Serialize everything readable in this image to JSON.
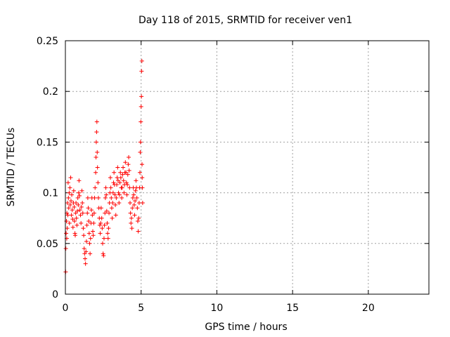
{
  "chart_data": {
    "type": "scatter",
    "title": "Day 118 of 2015, SRMTID for receiver ven1",
    "xlabel": "GPS time / hours",
    "ylabel": "SRMTID / TECUs",
    "xlim": [
      0,
      24
    ],
    "ylim": [
      0,
      0.25
    ],
    "xticks": [
      0,
      5,
      10,
      15,
      20
    ],
    "xtick_labels": [
      "0",
      "5",
      "10",
      "15",
      "20"
    ],
    "yticks": [
      0,
      0.05,
      0.1,
      0.15,
      0.2,
      0.25
    ],
    "ytick_labels": [
      "0",
      "0.05",
      "0.1",
      "0.15",
      "0.2",
      "0.25"
    ],
    "grid": true,
    "marker": "+",
    "color": "#ff0000",
    "series": [
      {
        "name": "ven1",
        "points": [
          [
            0.02,
            0.022
          ],
          [
            0.03,
            0.045
          ],
          [
            0.05,
            0.06
          ],
          [
            0.07,
            0.072
          ],
          [
            0.09,
            0.055
          ],
          [
            0.1,
            0.08
          ],
          [
            0.12,
            0.065
          ],
          [
            0.14,
            0.09
          ],
          [
            0.16,
            0.078
          ],
          [
            0.18,
            0.11
          ],
          [
            0.2,
            0.095
          ],
          [
            0.22,
            0.085
          ],
          [
            0.25,
            0.1
          ],
          [
            0.27,
            0.07
          ],
          [
            0.3,
            0.105
          ],
          [
            0.32,
            0.088
          ],
          [
            0.35,
            0.115
          ],
          [
            0.37,
            0.092
          ],
          [
            0.4,
            0.078
          ],
          [
            0.42,
            0.098
          ],
          [
            0.45,
            0.083
          ],
          [
            0.48,
            0.074
          ],
          [
            0.5,
            0.066
          ],
          [
            0.53,
            0.09
          ],
          [
            0.55,
            0.102
          ],
          [
            0.58,
            0.086
          ],
          [
            0.6,
            0.072
          ],
          [
            0.63,
            0.06
          ],
          [
            0.65,
            0.058
          ],
          [
            0.68,
            0.08
          ],
          [
            0.7,
            0.09
          ],
          [
            0.73,
            0.075
          ],
          [
            0.76,
            0.068
          ],
          [
            0.79,
            0.082
          ],
          [
            0.82,
            0.095
          ],
          [
            0.85,
            0.088
          ],
          [
            0.88,
            0.1
          ],
          [
            0.9,
            0.112
          ],
          [
            0.93,
            0.097
          ],
          [
            0.96,
            0.083
          ],
          [
            1.0,
            0.078
          ],
          [
            1.03,
            0.07
          ],
          [
            1.06,
            0.086
          ],
          [
            1.09,
            0.102
          ],
          [
            1.12,
            0.09
          ],
          [
            1.15,
            0.08
          ],
          [
            1.18,
            0.065
          ],
          [
            1.21,
            0.058
          ],
          [
            1.24,
            0.045
          ],
          [
            1.27,
            0.04
          ],
          [
            1.3,
            0.035
          ],
          [
            1.33,
            0.03
          ],
          [
            1.36,
            0.042
          ],
          [
            1.39,
            0.052
          ],
          [
            1.42,
            0.068
          ],
          [
            1.45,
            0.08
          ],
          [
            1.48,
            0.095
          ],
          [
            1.51,
            0.085
          ],
          [
            1.54,
            0.072
          ],
          [
            1.57,
            0.06
          ],
          [
            1.6,
            0.05
          ],
          [
            1.63,
            0.04
          ],
          [
            1.66,
            0.055
          ],
          [
            1.69,
            0.07
          ],
          [
            1.72,
            0.083
          ],
          [
            1.75,
            0.095
          ],
          [
            1.78,
            0.078
          ],
          [
            1.81,
            0.062
          ],
          [
            1.84,
            0.058
          ],
          [
            1.87,
            0.07
          ],
          [
            1.9,
            0.08
          ],
          [
            1.93,
            0.095
          ],
          [
            1.96,
            0.105
          ],
          [
            2.0,
            0.12
          ],
          [
            2.02,
            0.135
          ],
          [
            2.04,
            0.15
          ],
          [
            2.06,
            0.16
          ],
          [
            2.08,
            0.17
          ],
          [
            2.1,
            0.14
          ],
          [
            2.12,
            0.125
          ],
          [
            2.15,
            0.11
          ],
          [
            2.18,
            0.095
          ],
          [
            2.21,
            0.085
          ],
          [
            2.24,
            0.075
          ],
          [
            2.27,
            0.068
          ],
          [
            2.3,
            0.06
          ],
          [
            2.33,
            0.07
          ],
          [
            2.36,
            0.085
          ],
          [
            2.4,
            0.075
          ],
          [
            2.43,
            0.065
          ],
          [
            2.46,
            0.05
          ],
          [
            2.49,
            0.04
          ],
          [
            2.52,
            0.038
          ],
          [
            2.55,
            0.055
          ],
          [
            2.58,
            0.068
          ],
          [
            2.61,
            0.08
          ],
          [
            2.64,
            0.095
          ],
          [
            2.67,
            0.105
          ],
          [
            2.7,
            0.098
          ],
          [
            2.73,
            0.082
          ],
          [
            2.76,
            0.07
          ],
          [
            2.79,
            0.06
          ],
          [
            2.82,
            0.055
          ],
          [
            2.85,
            0.065
          ],
          [
            2.88,
            0.08
          ],
          [
            2.91,
            0.09
          ],
          [
            2.94,
            0.1
          ],
          [
            2.97,
            0.115
          ],
          [
            3.0,
            0.105
          ],
          [
            3.03,
            0.095
          ],
          [
            3.06,
            0.085
          ],
          [
            3.09,
            0.075
          ],
          [
            3.12,
            0.09
          ],
          [
            3.15,
            0.1
          ],
          [
            3.18,
            0.11
          ],
          [
            3.21,
            0.12
          ],
          [
            3.24,
            0.108
          ],
          [
            3.27,
            0.098
          ],
          [
            3.3,
            0.088
          ],
          [
            3.33,
            0.078
          ],
          [
            3.36,
            0.095
          ],
          [
            3.39,
            0.108
          ],
          [
            3.42,
            0.115
          ],
          [
            3.45,
            0.125
          ],
          [
            3.48,
            0.112
          ],
          [
            3.51,
            0.1
          ],
          [
            3.54,
            0.09
          ],
          [
            3.57,
            0.098
          ],
          [
            3.6,
            0.11
          ],
          [
            3.63,
            0.12
          ],
          [
            3.66,
            0.115
          ],
          [
            3.69,
            0.105
          ],
          [
            3.72,
            0.095
          ],
          [
            3.75,
            0.105
          ],
          [
            3.78,
            0.118
          ],
          [
            3.81,
            0.125
          ],
          [
            3.84,
            0.112
          ],
          [
            3.87,
            0.1
          ],
          [
            3.9,
            0.108
          ],
          [
            3.93,
            0.12
          ],
          [
            3.96,
            0.13
          ],
          [
            4.0,
            0.12
          ],
          [
            4.03,
            0.11
          ],
          [
            4.06,
            0.098
          ],
          [
            4.09,
            0.108
          ],
          [
            4.12,
            0.118
          ],
          [
            4.15,
            0.128
          ],
          [
            4.18,
            0.135
          ],
          [
            4.21,
            0.122
          ],
          [
            4.24,
            0.105
          ],
          [
            4.27,
            0.09
          ],
          [
            4.3,
            0.08
          ],
          [
            4.33,
            0.07
          ],
          [
            4.36,
            0.075
          ],
          [
            4.39,
            0.065
          ],
          [
            4.42,
            0.085
          ],
          [
            4.45,
            0.095
          ],
          [
            4.48,
            0.105
          ],
          [
            4.51,
            0.098
          ],
          [
            4.54,
            0.088
          ],
          [
            4.57,
            0.078
          ],
          [
            4.6,
            0.092
          ],
          [
            4.63,
            0.102
          ],
          [
            4.66,
            0.112
          ],
          [
            4.69,
            0.105
          ],
          [
            4.72,
            0.095
          ],
          [
            4.75,
            0.085
          ],
          [
            4.78,
            0.072
          ],
          [
            4.81,
            0.062
          ],
          [
            4.84,
            0.075
          ],
          [
            4.87,
            0.09
          ],
          [
            4.9,
            0.105
          ],
          [
            4.92,
            0.12
          ],
          [
            4.94,
            0.14
          ],
          [
            4.96,
            0.15
          ],
          [
            4.98,
            0.17
          ],
          [
            5.0,
            0.185
          ],
          [
            5.02,
            0.195
          ],
          [
            5.03,
            0.22
          ],
          [
            5.05,
            0.23
          ],
          [
            5.06,
            0.128
          ],
          [
            5.07,
            0.115
          ],
          [
            5.08,
            0.105
          ],
          [
            5.1,
            0.09
          ]
        ]
      }
    ]
  }
}
